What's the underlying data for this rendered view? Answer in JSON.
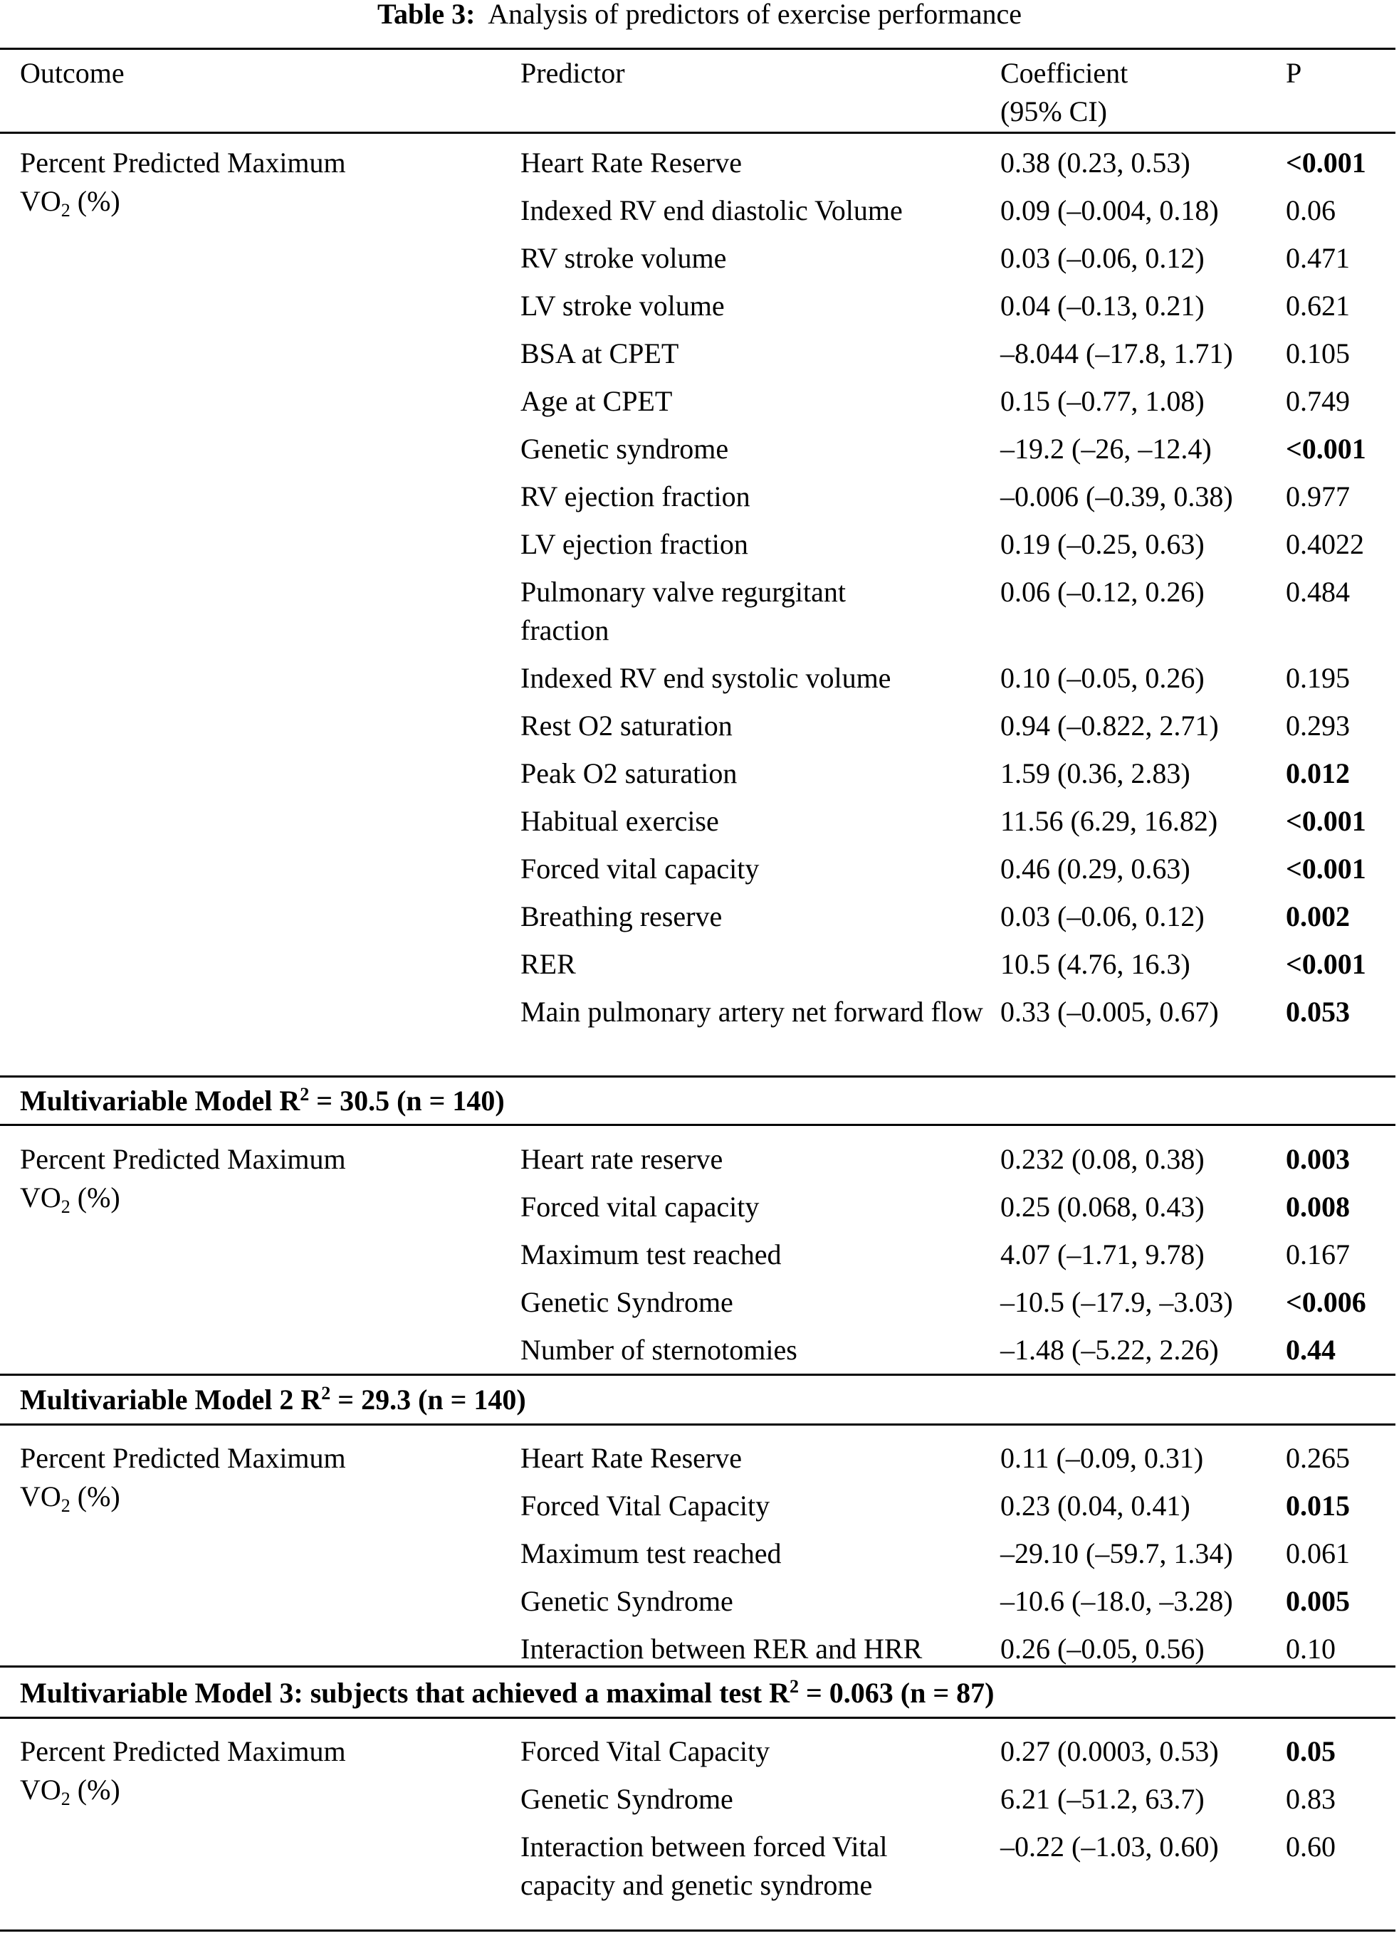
{
  "title": {
    "label": "Table 3:",
    "text": "Analysis of predictors of exercise performance"
  },
  "header": {
    "outcome": "Outcome",
    "predictor": "Predictor",
    "coefficient": "Coefficient",
    "coefficient_sub": "(95% CI)",
    "p": "P"
  },
  "outcome": {
    "line1": "Percent Predicted Maximum",
    "line2_main": "VO",
    "line2_sub": "2",
    "line2_rest": " (%)"
  },
  "sections": [
    {
      "model_title": null,
      "rows": [
        {
          "predictor": "Heart Rate Reserve",
          "coefficient": "0.38 (0.23, 0.53)",
          "p": "<0.001",
          "bold": true
        },
        {
          "predictor": "Indexed RV end diastolic Volume",
          "coefficient": "0.09 (–0.004, 0.18)",
          "p": "0.06",
          "bold": false
        },
        {
          "predictor": "RV stroke volume",
          "coefficient": "0.03 (–0.06, 0.12)",
          "p": "0.471",
          "bold": false
        },
        {
          "predictor": "LV stroke volume",
          "coefficient": "0.04 (–0.13, 0.21)",
          "p": "0.621",
          "bold": false
        },
        {
          "predictor": "BSA at CPET",
          "coefficient": "–8.044 (–17.8, 1.71)",
          "p": "0.105",
          "bold": false
        },
        {
          "predictor": "Age at CPET",
          "coefficient": "0.15 (–0.77, 1.08)",
          "p": "0.749",
          "bold": false
        },
        {
          "predictor": "Genetic syndrome",
          "coefficient": "–19.2 (–26, –12.4)",
          "p": "<0.001",
          "bold": true
        },
        {
          "predictor": "RV ejection fraction",
          "coefficient": "–0.006 (–0.39, 0.38)",
          "p": "0.977",
          "bold": false
        },
        {
          "predictor": "LV ejection fraction",
          "coefficient": "0.19 (–0.25, 0.63)",
          "p": "0.4022",
          "bold": false
        },
        {
          "predictor": "Pulmonary valve regurgitant fraction",
          "coefficient": "0.06 (–0.12, 0.26)",
          "p": "0.484",
          "bold": false,
          "tall": true
        },
        {
          "predictor": "Indexed RV end systolic volume",
          "coefficient": "0.10 (–0.05, 0.26)",
          "p": "0.195",
          "bold": false
        },
        {
          "predictor": "Rest O2 saturation",
          "coefficient": "0.94 (–0.822, 2.71)",
          "p": "0.293",
          "bold": false
        },
        {
          "predictor": "Peak O2 saturation",
          "coefficient": "1.59 (0.36, 2.83)",
          "p": "0.012",
          "bold": true
        },
        {
          "predictor": "Habitual exercise",
          "coefficient": "11.56 (6.29, 16.82)",
          "p": "<0.001",
          "bold": true
        },
        {
          "predictor": "Forced vital capacity",
          "coefficient": "0.46 (0.29, 0.63)",
          "p": "<0.001",
          "bold": true
        },
        {
          "predictor": "Breathing reserve",
          "coefficient": "0.03 (–0.06, 0.12)",
          "p": "0.002",
          "bold": true
        },
        {
          "predictor": "RER",
          "coefficient": "10.5 (4.76, 16.3)",
          "p": "<0.001",
          "bold": true
        },
        {
          "predictor": "Main pulmonary artery net forward flow",
          "coefficient": "0.33 (–0.005, 0.67)",
          "p": "0.053",
          "bold": true,
          "tall": true
        }
      ]
    },
    {
      "model_title": {
        "pre": "Multivariable Model R",
        "sup": "2",
        "post": " = 30.5 (n = 140)"
      },
      "rows": [
        {
          "predictor": "Heart rate reserve",
          "coefficient": "0.232 (0.08, 0.38)",
          "p": "0.003",
          "bold": true
        },
        {
          "predictor": "Forced vital capacity",
          "coefficient": "0.25 (0.068, 0.43)",
          "p": "0.008",
          "bold": true
        },
        {
          "predictor": "Maximum test reached",
          "coefficient": "4.07 (–1.71, 9.78)",
          "p": "0.167",
          "bold": false
        },
        {
          "predictor": "Genetic Syndrome",
          "coefficient": "–10.5 (–17.9, –3.03)",
          "p": "<0.006",
          "bold": true
        },
        {
          "predictor": "Number of sternotomies",
          "coefficient": "–1.48 (–5.22, 2.26)",
          "p": "0.44",
          "bold": true
        }
      ]
    },
    {
      "model_title": {
        "pre": "Multivariable Model 2 R",
        "sup": "2",
        "post": " = 29.3 (n = 140)"
      },
      "rows": [
        {
          "predictor": "Heart Rate Reserve",
          "coefficient": "0.11 (–0.09, 0.31)",
          "p": "0.265",
          "bold": false
        },
        {
          "predictor": "Forced Vital Capacity",
          "coefficient": "0.23 (0.04, 0.41)",
          "p": "0.015",
          "bold": true
        },
        {
          "predictor": "Maximum test reached",
          "coefficient": "–29.10 (–59.7, 1.34)",
          "p": "0.061",
          "bold": false
        },
        {
          "predictor": "Genetic Syndrome",
          "coefficient": "–10.6 (–18.0, –3.28)",
          "p": "0.005",
          "bold": true
        },
        {
          "predictor": "Interaction between RER and HRR",
          "coefficient": "0.26 (–0.05, 0.56)",
          "p": "0.10",
          "bold": false
        }
      ]
    },
    {
      "model_title": {
        "pre": "Multivariable Model 3: subjects that achieved a maximal test R",
        "sup": "2",
        "post": " = 0.063 (n = 87)"
      },
      "rows": [
        {
          "predictor": "Forced Vital Capacity",
          "coefficient": "0.27 (0.0003, 0.53)",
          "p": "0.05",
          "bold": true
        },
        {
          "predictor": "Genetic Syndrome",
          "coefficient": "6.21 (–51.2, 63.7)",
          "p": "0.83",
          "bold": false
        },
        {
          "predictor": "Interaction between forced Vital capacity and genetic syndrome",
          "coefficient": "–0.22 (–1.03, 0.60)",
          "p": "0.60",
          "bold": false,
          "tall3": true
        }
      ]
    }
  ]
}
